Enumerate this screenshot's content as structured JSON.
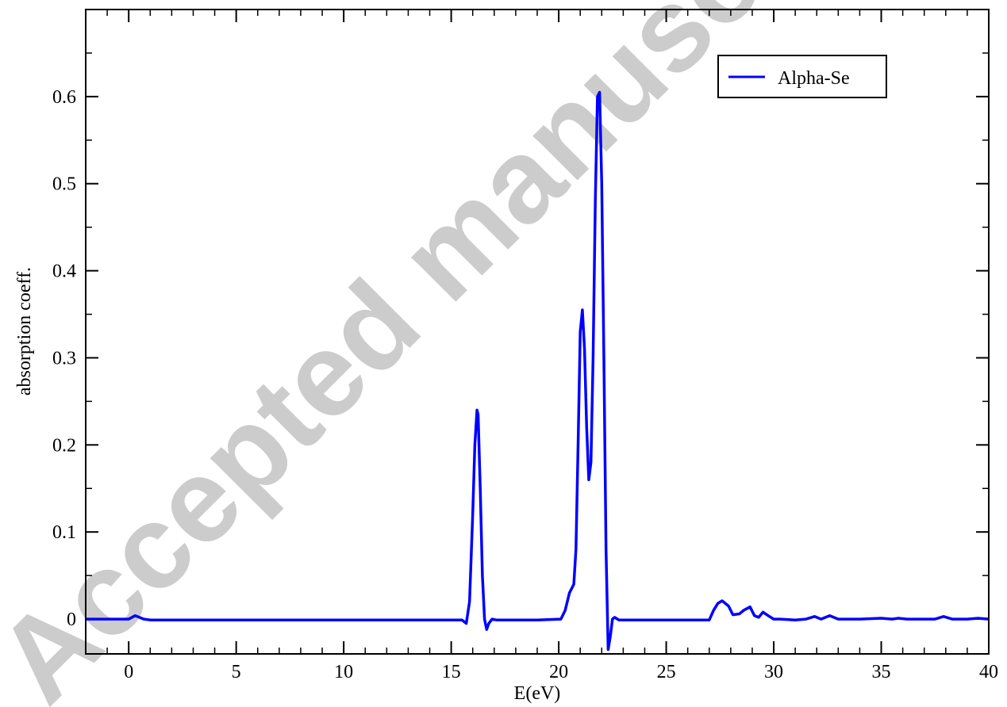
{
  "watermark": "Accepted manuscript",
  "chart_data": {
    "type": "line",
    "title": "",
    "xlabel": "E(eV)",
    "ylabel": "absorption coeff.",
    "xlim": [
      -2,
      40
    ],
    "ylim": [
      -0.04,
      0.7
    ],
    "xticks": [
      0,
      5,
      10,
      15,
      20,
      25,
      30,
      35,
      40
    ],
    "xtick_labels": [
      "0",
      "5",
      "10",
      "15",
      "20",
      "25",
      "30",
      "35",
      "40"
    ],
    "yticks": [
      0,
      0.1,
      0.2,
      0.3,
      0.4,
      0.5,
      0.6
    ],
    "ytick_labels": [
      "0",
      "0.1",
      "0.2",
      "0.3",
      "0.4",
      "0.5",
      "0.6"
    ],
    "grid": false,
    "legend_position": "top-right",
    "series": [
      {
        "name": "Alpha-Se",
        "color": "#0000ff",
        "x": [
          -2,
          0,
          0.15,
          0.3,
          0.5,
          0.7,
          1,
          5,
          10,
          15,
          15.5,
          15.7,
          15.85,
          16.0,
          16.1,
          16.2,
          16.25,
          16.35,
          16.45,
          16.55,
          16.65,
          16.75,
          16.9,
          17.1,
          17.5,
          19,
          20.1,
          20.3,
          20.5,
          20.6,
          20.7,
          20.8,
          20.9,
          21.0,
          21.1,
          21.2,
          21.3,
          21.4,
          21.5,
          21.6,
          21.7,
          21.8,
          21.9,
          22.0,
          22.1,
          22.2,
          22.3,
          22.4,
          22.5,
          22.6,
          22.8,
          23.0,
          25,
          27,
          27.2,
          27.4,
          27.6,
          27.9,
          28.1,
          28.4,
          28.6,
          28.9,
          29.1,
          29.3,
          29.5,
          29.8,
          30.0,
          30.3,
          31.0,
          31.5,
          31.9,
          32.2,
          32.6,
          33.0,
          34,
          35,
          35.5,
          35.8,
          36.2,
          37,
          37.5,
          37.9,
          38.3,
          39,
          39.5,
          40
        ],
        "y": [
          0,
          0,
          0.002,
          0.004,
          0.002,
          0,
          -0.001,
          -0.001,
          -0.001,
          -0.001,
          -0.001,
          -0.005,
          0.02,
          0.12,
          0.2,
          0.24,
          0.235,
          0.15,
          0.05,
          0.0,
          -0.012,
          -0.005,
          0,
          -0.001,
          -0.001,
          -0.001,
          0,
          0.01,
          0.03,
          0.035,
          0.04,
          0.08,
          0.2,
          0.33,
          0.355,
          0.31,
          0.22,
          0.16,
          0.18,
          0.3,
          0.48,
          0.6,
          0.605,
          0.5,
          0.3,
          0.08,
          -0.035,
          -0.02,
          0.0,
          0.002,
          -0.001,
          -0.001,
          -0.001,
          -0.001,
          0.01,
          0.018,
          0.021,
          0.015,
          0.005,
          0.006,
          0.01,
          0.014,
          0.004,
          0.002,
          0.008,
          0.003,
          0.0,
          0.0,
          -0.001,
          0.0,
          0.003,
          0.0,
          0.004,
          0.0,
          0.0,
          0.001,
          0.0,
          0.001,
          0.0,
          0.0,
          0.0,
          0.003,
          0.0,
          0.0,
          0.001,
          0.0
        ]
      }
    ]
  }
}
